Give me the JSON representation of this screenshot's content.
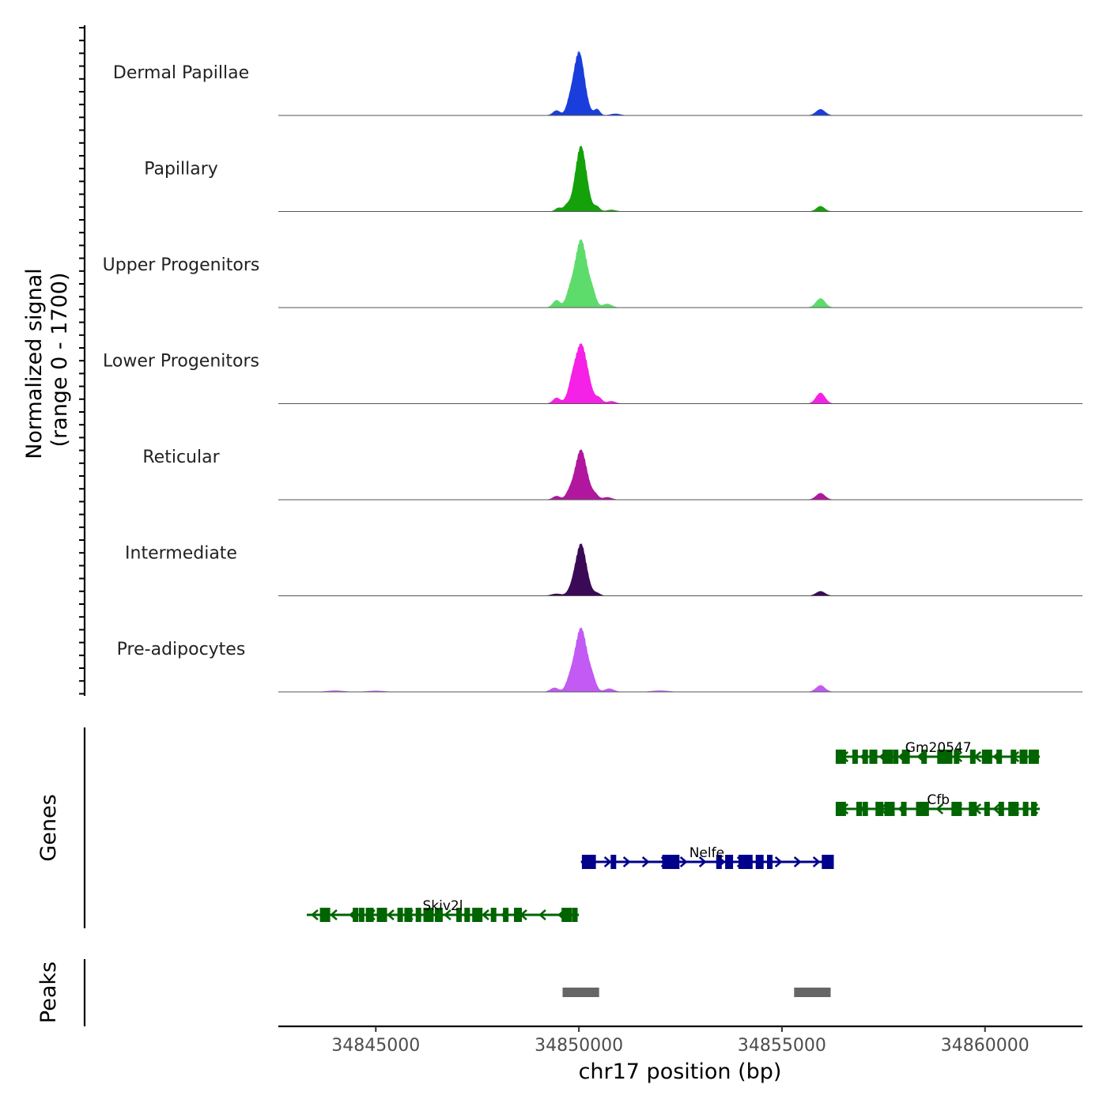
{
  "chart_data": {
    "type": "area",
    "title": "",
    "xlabel": "chr17 position (bp)",
    "ylabel": "Normalized signal",
    "ylabel_sub": "(range 0 - 1700)",
    "xlim": [
      34842600,
      34862400
    ],
    "ylim": [
      0,
      1700
    ],
    "x_ticks": [
      34845000,
      34850000,
      34855000,
      34860000
    ],
    "x_tick_labels": [
      "34845000",
      "34850000",
      "34855000",
      "34860000"
    ],
    "tracks_label_genes": "Genes",
    "tracks_label_peaks": "Peaks",
    "series": [
      {
        "name": "Dermal Papillae",
        "color": "#1a3edb",
        "peaks": [
          {
            "pos": 34850000,
            "h": 1600,
            "w": 140
          },
          {
            "pos": 34849450,
            "h": 120,
            "w": 90
          },
          {
            "pos": 34849750,
            "h": 160,
            "w": 70
          },
          {
            "pos": 34850450,
            "h": 150,
            "w": 70
          },
          {
            "pos": 34850900,
            "h": 40,
            "w": 120
          },
          {
            "pos": 34855950,
            "h": 150,
            "w": 110
          }
        ]
      },
      {
        "name": "Papillary",
        "color": "#14a10a",
        "peaks": [
          {
            "pos": 34850050,
            "h": 1640,
            "w": 140
          },
          {
            "pos": 34849500,
            "h": 90,
            "w": 80
          },
          {
            "pos": 34849700,
            "h": 130,
            "w": 70
          },
          {
            "pos": 34850450,
            "h": 110,
            "w": 70
          },
          {
            "pos": 34850800,
            "h": 40,
            "w": 110
          },
          {
            "pos": 34855950,
            "h": 130,
            "w": 100
          }
        ]
      },
      {
        "name": "Upper Progenitors",
        "color": "#5ddc6c",
        "peaks": [
          {
            "pos": 34850050,
            "h": 1700,
            "w": 160
          },
          {
            "pos": 34849450,
            "h": 180,
            "w": 90
          },
          {
            "pos": 34849750,
            "h": 220,
            "w": 80
          },
          {
            "pos": 34850350,
            "h": 230,
            "w": 80
          },
          {
            "pos": 34850700,
            "h": 90,
            "w": 110
          },
          {
            "pos": 34855950,
            "h": 230,
            "w": 110
          }
        ]
      },
      {
        "name": "Lower Progenitors",
        "color": "#f521e6",
        "peaks": [
          {
            "pos": 34850050,
            "h": 1500,
            "w": 170
          },
          {
            "pos": 34849450,
            "h": 140,
            "w": 90
          },
          {
            "pos": 34849800,
            "h": 160,
            "w": 80
          },
          {
            "pos": 34850500,
            "h": 120,
            "w": 80
          },
          {
            "pos": 34850800,
            "h": 60,
            "w": 100
          },
          {
            "pos": 34855950,
            "h": 270,
            "w": 110
          }
        ]
      },
      {
        "name": "Reticular",
        "color": "#b0179e",
        "peaks": [
          {
            "pos": 34850050,
            "h": 1250,
            "w": 150
          },
          {
            "pos": 34849450,
            "h": 90,
            "w": 90
          },
          {
            "pos": 34849750,
            "h": 120,
            "w": 80
          },
          {
            "pos": 34850400,
            "h": 110,
            "w": 80
          },
          {
            "pos": 34850700,
            "h": 60,
            "w": 110
          },
          {
            "pos": 34855950,
            "h": 160,
            "w": 110
          }
        ]
      },
      {
        "name": "Intermediate",
        "color": "#3b0a57",
        "peaks": [
          {
            "pos": 34850050,
            "h": 1300,
            "w": 140
          },
          {
            "pos": 34849450,
            "h": 50,
            "w": 120
          },
          {
            "pos": 34849800,
            "h": 70,
            "w": 90
          },
          {
            "pos": 34850450,
            "h": 60,
            "w": 80
          },
          {
            "pos": 34855950,
            "h": 110,
            "w": 110
          }
        ]
      },
      {
        "name": "Pre-adipocytes",
        "color": "#c25af3",
        "peaks": [
          {
            "pos": 34850050,
            "h": 1600,
            "w": 160
          },
          {
            "pos": 34849400,
            "h": 100,
            "w": 100
          },
          {
            "pos": 34849750,
            "h": 160,
            "w": 80
          },
          {
            "pos": 34850350,
            "h": 200,
            "w": 80
          },
          {
            "pos": 34850750,
            "h": 80,
            "w": 110
          },
          {
            "pos": 34844000,
            "h": 30,
            "w": 200
          },
          {
            "pos": 34845000,
            "h": 25,
            "w": 200
          },
          {
            "pos": 34852000,
            "h": 30,
            "w": 200
          },
          {
            "pos": 34855950,
            "h": 160,
            "w": 110
          }
        ]
      }
    ],
    "genes": [
      {
        "name": "Gm20547",
        "strand": "-",
        "color": "#006400",
        "start": 34856350,
        "end": 34861350,
        "exons": [
          34856450,
          34856800,
          34857050,
          34857250,
          34857600,
          34857800,
          34858050,
          34858500,
          34858950,
          34859100,
          34859300,
          34859700,
          34860050,
          34860350,
          34860700,
          34860950,
          34861200
        ]
      },
      {
        "name": "Cfb",
        "strand": "-",
        "color": "#006400",
        "start": 34856350,
        "end": 34861350,
        "exons": [
          34856450,
          34856900,
          34857050,
          34857400,
          34857650,
          34858000,
          34858400,
          34858550,
          34859300,
          34859700,
          34860050,
          34860400,
          34860700,
          34861000,
          34861200
        ]
      },
      {
        "name": "Nelfe",
        "strand": "+",
        "color": "#00008b",
        "start": 34850050,
        "end": 34856250,
        "exons": [
          34850200,
          34850350,
          34850850,
          34852150,
          34852350,
          34853450,
          34853700,
          34854000,
          34854150,
          34854450,
          34854700,
          34856050,
          34856150
        ]
      },
      {
        "name": "Skiv2l",
        "strand": "-",
        "color": "#006400",
        "start": 34843300,
        "end": 34850000,
        "exons": [
          34843750,
          34844500,
          34844650,
          34844850,
          34845150,
          34845600,
          34845800,
          34846050,
          34846300,
          34846550,
          34847050,
          34847250,
          34847500,
          34847900,
          34848200,
          34848500,
          34849700,
          34849900
        ]
      }
    ],
    "peak_regions": [
      {
        "start": 34849600,
        "end": 34850500
      },
      {
        "start": 34855300,
        "end": 34856200
      }
    ]
  }
}
